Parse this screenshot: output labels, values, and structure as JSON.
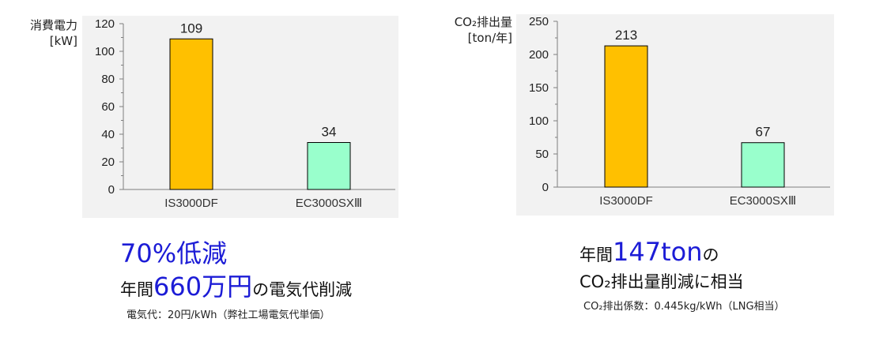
{
  "chart_data": [
    {
      "type": "bar",
      "ylabel_line1": "消費電力",
      "ylabel_line2": "[kW]",
      "categories": [
        "IS3000DF",
        "EC3000SXⅢ"
      ],
      "values": [
        109,
        34
      ],
      "data_labels": [
        "109",
        "34"
      ],
      "colors": [
        "#ffc000",
        "#99ffcc"
      ],
      "ylim": [
        0,
        120
      ],
      "yticks": [
        "0",
        "20",
        "40",
        "60",
        "80",
        "100",
        "120"
      ],
      "grid": false
    },
    {
      "type": "bar",
      "ylabel_line1": "CO₂排出量",
      "ylabel_line2": "[ton/年]",
      "categories": [
        "IS3000DF",
        "EC3000SXⅢ"
      ],
      "values": [
        213,
        67
      ],
      "data_labels": [
        "213",
        "67"
      ],
      "colors": [
        "#ffc000",
        "#99ffcc"
      ],
      "ylim": [
        0,
        250
      ],
      "yticks": [
        "0",
        "50",
        "100",
        "150",
        "200",
        "250"
      ],
      "grid": false
    }
  ],
  "left_text": {
    "headline": "70%低減",
    "line2_pre": "年間",
    "line2_hl": "660万円",
    "line2_post": "の電気代削減",
    "note": "電気代：20円/kWh（弊社工場電気代単価）"
  },
  "right_text": {
    "line1_pre": "年間",
    "line1_hl": "147ton",
    "line1_post": "の",
    "line2": "CO₂排出量削減に相当",
    "note": "CO₂排出係数：0.445kg/kWh（LNG相当）"
  }
}
